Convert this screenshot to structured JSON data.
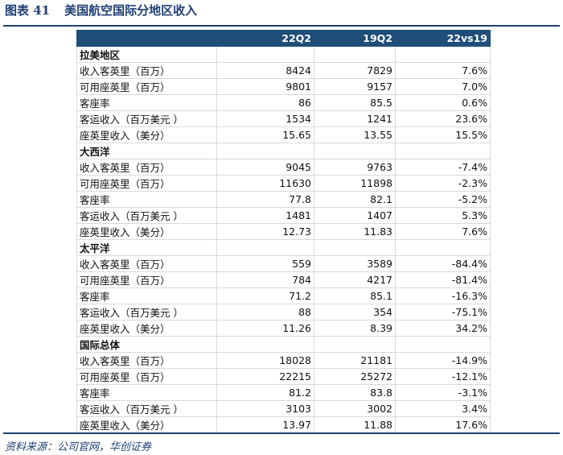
{
  "title": {
    "label": "图表 41",
    "text": "美国航空国际分地区收入"
  },
  "table": {
    "headers": [
      "",
      "22Q2",
      "19Q2",
      "22vs19"
    ],
    "sections": [
      {
        "name": "拉美地区",
        "rows": [
          [
            "收入客英里（百万）",
            "8424",
            "7829",
            "7.6%"
          ],
          [
            "可用座英里（百万）",
            "9801",
            "9157",
            "7.0%"
          ],
          [
            "客座率",
            "86",
            "85.5",
            "0.6%"
          ],
          [
            "客运收入（百万美元 ）",
            "1534",
            "1241",
            "23.6%"
          ],
          [
            "座英里收入（美分）",
            "15.65",
            "13.55",
            "15.5%"
          ]
        ]
      },
      {
        "name": "大西洋",
        "rows": [
          [
            "收入客英里（百万）",
            "9045",
            "9763",
            "-7.4%"
          ],
          [
            "可用座英里（百万）",
            "11630",
            "11898",
            "-2.3%"
          ],
          [
            "客座率",
            "77.8",
            "82.1",
            "-5.2%"
          ],
          [
            "客运收入（百万美元 ）",
            "1481",
            "1407",
            "5.3%"
          ],
          [
            "座英里收入（美分）",
            "12.73",
            "11.83",
            "7.6%"
          ]
        ]
      },
      {
        "name": "太平洋",
        "rows": [
          [
            "收入客英里（百万）",
            "559",
            "3589",
            "-84.4%"
          ],
          [
            "可用座英里（百万）",
            "784",
            "4217",
            "-81.4%"
          ],
          [
            "客座率",
            "71.2",
            "85.1",
            "-16.3%"
          ],
          [
            "客运收入（百万美元 ）",
            "88",
            "354",
            "-75.1%"
          ],
          [
            "座英里收入（美分）",
            "11.26",
            "8.39",
            "34.2%"
          ]
        ]
      },
      {
        "name": "国际总体",
        "rows": [
          [
            "收入客英里（百万）",
            "18028",
            "21181",
            "-14.9%"
          ],
          [
            "可用座英里（百万）",
            "22215",
            "25272",
            "-12.1%"
          ],
          [
            "客座率",
            "81.2",
            "83.8",
            "-3.1%"
          ],
          [
            "客运收入（百万美元 ）",
            "3103",
            "3002",
            "3.4%"
          ],
          [
            "座英里收入（美分）",
            "13.97",
            "11.88",
            "17.6%"
          ]
        ]
      }
    ]
  },
  "source": "资料来源：公司官网，华创证券",
  "colors": {
    "header_bg": "#1f4e79",
    "title": "#1f3f73"
  }
}
